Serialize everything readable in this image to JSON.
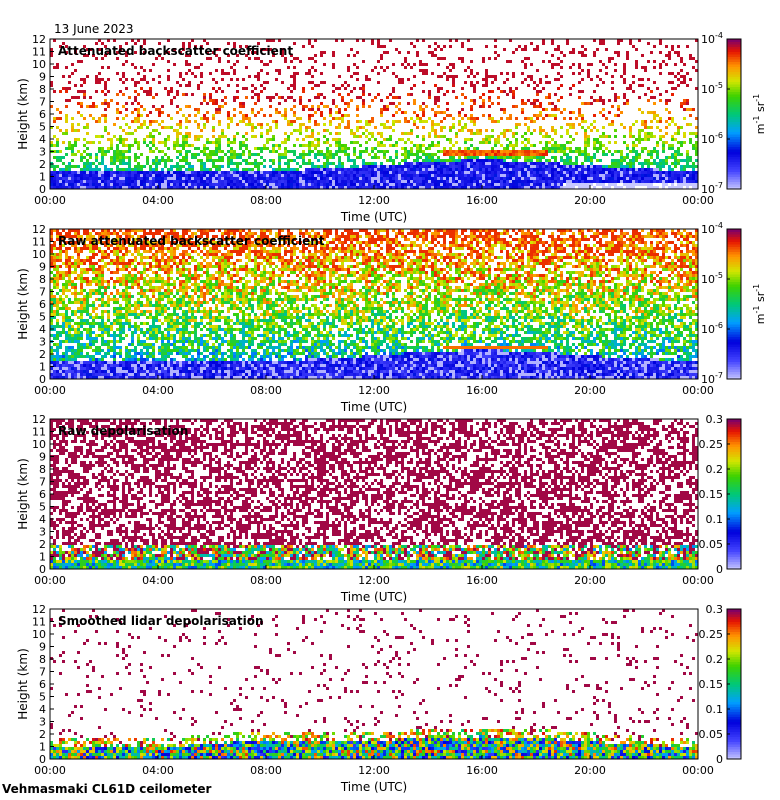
{
  "date_label": "13 June 2023",
  "footer_label": "Vehmasmaki CL61D ceilometer",
  "chart_data": [
    {
      "type": "heatmap",
      "title": "Attenuated backscatter coefficient",
      "xlabel": "Time (UTC)",
      "ylabel": "Height (km)",
      "xticks": [
        "00:00",
        "04:00",
        "08:00",
        "12:00",
        "16:00",
        "20:00",
        "00:00"
      ],
      "xlim": [
        0,
        24
      ],
      "ylim": [
        0,
        12
      ],
      "yticks": [
        0,
        1,
        2,
        3,
        4,
        5,
        6,
        7,
        8,
        9,
        10,
        11,
        12
      ],
      "colorbar": {
        "scale": "log",
        "range": [
          1e-07,
          0.0001
        ],
        "tick_values": [
          1e-07,
          1e-06,
          1e-05,
          0.0001
        ],
        "tick_labels": [
          {
            "base": "10",
            "exp": "-7"
          },
          {
            "base": "10",
            "exp": "-6"
          },
          {
            "base": "10",
            "exp": "-5"
          },
          {
            "base": "10",
            "exp": "-4"
          }
        ],
        "unit": {
          "m": "m",
          "m_exp": "-1",
          "sr": "sr",
          "sr_exp": "-1"
        }
      }
    },
    {
      "type": "heatmap",
      "title": "Raw attenuated backscatter coefficient",
      "xlabel": "Time (UTC)",
      "ylabel": "Height (km)",
      "xticks": [
        "00:00",
        "04:00",
        "08:00",
        "12:00",
        "16:00",
        "20:00",
        "00:00"
      ],
      "xlim": [
        0,
        24
      ],
      "ylim": [
        0,
        12
      ],
      "yticks": [
        0,
        1,
        2,
        3,
        4,
        5,
        6,
        7,
        8,
        9,
        10,
        11,
        12
      ],
      "colorbar": {
        "scale": "log",
        "range": [
          1e-07,
          0.0001
        ],
        "tick_values": [
          1e-07,
          1e-06,
          1e-05,
          0.0001
        ],
        "tick_labels": [
          {
            "base": "10",
            "exp": "-7"
          },
          {
            "base": "10",
            "exp": "-6"
          },
          {
            "base": "10",
            "exp": "-5"
          },
          {
            "base": "10",
            "exp": "-4"
          }
        ],
        "unit": {
          "m": "m",
          "m_exp": "-1",
          "sr": "sr",
          "sr_exp": "-1"
        }
      }
    },
    {
      "type": "heatmap",
      "title": "Raw depolarisation",
      "xlabel": "Time (UTC)",
      "ylabel": "Height (km)",
      "xticks": [
        "00:00",
        "04:00",
        "08:00",
        "12:00",
        "16:00",
        "20:00",
        "00:00"
      ],
      "xlim": [
        0,
        24
      ],
      "ylim": [
        0,
        12
      ],
      "yticks": [
        0,
        1,
        2,
        3,
        4,
        5,
        6,
        7,
        8,
        9,
        10,
        11,
        12
      ],
      "colorbar": {
        "scale": "linear",
        "range": [
          0,
          0.3
        ],
        "tick_values": [
          0,
          0.05,
          0.1,
          0.15,
          0.2,
          0.25,
          0.3
        ],
        "tick_labels": [
          "0",
          "0.05",
          "0.1",
          "0.15",
          "0.2",
          "0.25",
          "0.3"
        ]
      }
    },
    {
      "type": "heatmap",
      "title": "Smoothed lidar depolarisation",
      "xlabel": "Time (UTC)",
      "ylabel": "Height (km)",
      "xticks": [
        "00:00",
        "04:00",
        "08:00",
        "12:00",
        "16:00",
        "20:00",
        "00:00"
      ],
      "xlim": [
        0,
        24
      ],
      "ylim": [
        0,
        12
      ],
      "yticks": [
        0,
        1,
        2,
        3,
        4,
        5,
        6,
        7,
        8,
        9,
        10,
        11,
        12
      ],
      "colorbar": {
        "scale": "linear",
        "range": [
          0,
          0.3
        ],
        "tick_values": [
          0,
          0.05,
          0.1,
          0.15,
          0.2,
          0.25,
          0.3
        ],
        "tick_labels": [
          "0",
          "0.05",
          "0.1",
          "0.15",
          "0.2",
          "0.25",
          "0.3"
        ]
      }
    }
  ]
}
